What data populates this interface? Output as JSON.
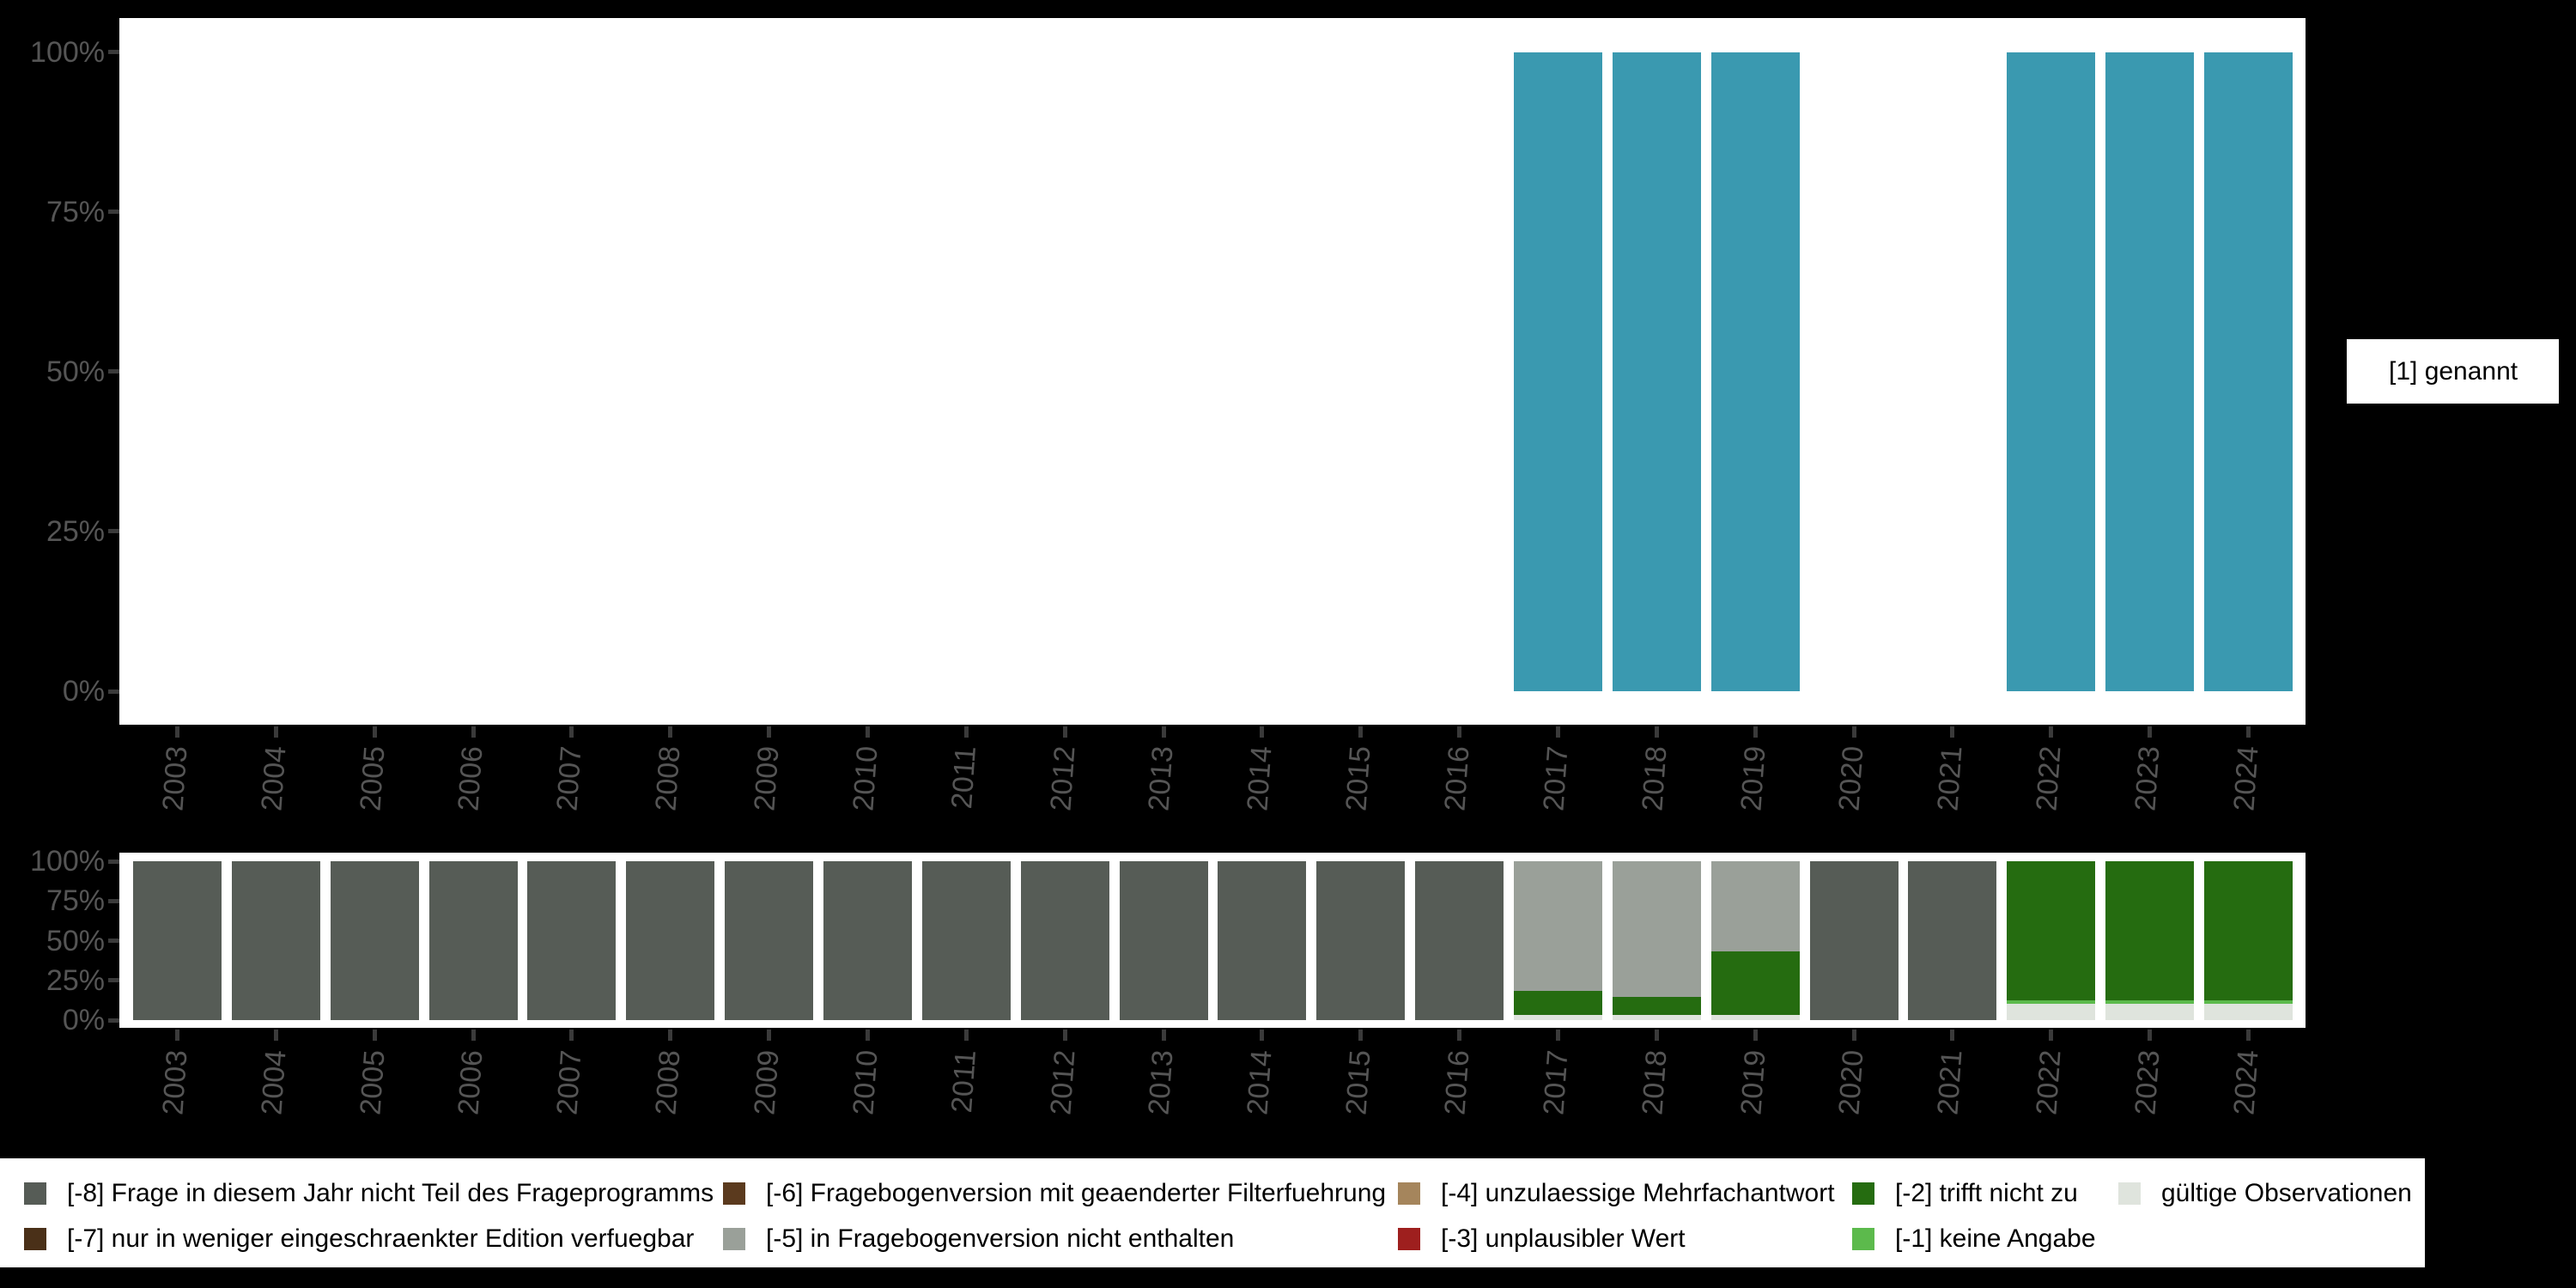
{
  "colors": {
    "background": "#000000",
    "panel": "#ffffff",
    "axis_text": "#555555",
    "tick": "#3a3a3a",
    "legend_background": "#ffffff",
    "legend_text": "#000000"
  },
  "top_legend": {
    "items": [
      {
        "label": "[1] genannt",
        "color": "#3A99B0"
      }
    ]
  },
  "bottom_legend": {
    "columns": [
      [
        {
          "label": "[-8] Frage in diesem Jahr nicht Teil des Frageprogramms",
          "color": "#565C56"
        },
        {
          "label": "[-7] nur in weniger eingeschraenkter Edition verfuegbar",
          "color": "#4A3018"
        }
      ],
      [
        {
          "label": "[-6] Fragebogenversion mit geaenderter Filterfuehrung",
          "color": "#5B3A1E"
        },
        {
          "label": "[-5] in Fragebogenversion nicht enthalten",
          "color": "#9AA099"
        }
      ],
      [
        {
          "label": "[-4] unzulaessige Mehrfachantwort",
          "color": "#A5855C"
        },
        {
          "label": "[-3] unplausibler Wert",
          "color": "#9E1F1E"
        }
      ],
      [
        {
          "label": "[-2] trifft nicht zu",
          "color": "#256C10"
        },
        {
          "label": "[-1] keine Angabe",
          "color": "#5CBA4C"
        }
      ],
      [
        {
          "label": "gültige Observationen",
          "color": "#DFE4DD"
        }
      ]
    ]
  },
  "chart_data": [
    {
      "type": "bar",
      "stacked": true,
      "title": "",
      "xlabel": "",
      "ylabel": "",
      "ylim": [
        0,
        100
      ],
      "grid": false,
      "legend_position": "right",
      "categories": [
        "2003",
        "2004",
        "2005",
        "2006",
        "2007",
        "2008",
        "2009",
        "2010",
        "2011",
        "2012",
        "2013",
        "2014",
        "2015",
        "2016",
        "2017",
        "2018",
        "2019",
        "2020",
        "2021",
        "2022",
        "2023",
        "2024"
      ],
      "y_tick_values": [
        0,
        25,
        50,
        75,
        100
      ],
      "y_tick_labels": [
        "0%",
        "25%",
        "50%",
        "75%",
        "100%"
      ],
      "series": [
        {
          "name": "[1] genannt",
          "color": "#3A99B0",
          "values": [
            0,
            0,
            0,
            0,
            0,
            0,
            0,
            0,
            0,
            0,
            0,
            0,
            0,
            0,
            100,
            100,
            100,
            0,
            0,
            100,
            100,
            100
          ]
        }
      ]
    },
    {
      "type": "bar",
      "stacked": true,
      "title": "",
      "xlabel": "",
      "ylabel": "",
      "ylim": [
        0,
        100
      ],
      "grid": false,
      "legend_position": "bottom",
      "categories": [
        "2003",
        "2004",
        "2005",
        "2006",
        "2007",
        "2008",
        "2009",
        "2010",
        "2011",
        "2012",
        "2013",
        "2014",
        "2015",
        "2016",
        "2017",
        "2018",
        "2019",
        "2020",
        "2021",
        "2022",
        "2023",
        "2024"
      ],
      "y_tick_values": [
        0,
        25,
        50,
        75,
        100
      ],
      "y_tick_labels": [
        "0%",
        "25%",
        "50%",
        "75%",
        "100%"
      ],
      "series": [
        {
          "name": "gültige Observationen",
          "color": "#DFE4DD",
          "values": [
            0,
            0,
            0,
            0,
            0,
            0,
            0,
            0,
            0,
            0,
            0,
            0,
            0,
            0,
            3.5,
            3.5,
            3,
            0,
            0,
            10.5,
            10.5,
            10.5
          ]
        },
        {
          "name": "[-1] keine Angabe",
          "color": "#5CBA4C",
          "values": [
            0,
            0,
            0,
            0,
            0,
            0,
            0,
            0,
            0,
            0,
            0,
            0,
            0,
            0,
            0,
            0,
            0,
            0,
            0,
            2,
            2,
            2
          ]
        },
        {
          "name": "[-2] trifft nicht zu",
          "color": "#256C10",
          "values": [
            0,
            0,
            0,
            0,
            0,
            0,
            0,
            0,
            0,
            0,
            0,
            0,
            0,
            0,
            15,
            11,
            40,
            0,
            0,
            87.5,
            87.5,
            87.5
          ]
        },
        {
          "name": "[-5] in Fragebogenversion nicht enthalten",
          "color": "#9AA099",
          "values": [
            0,
            0,
            0,
            0,
            0,
            0,
            0,
            0,
            0,
            0,
            0,
            0,
            0,
            0,
            81.5,
            85.5,
            57,
            0,
            0,
            0,
            0,
            0
          ]
        },
        {
          "name": "[-8] Frage in diesem Jahr nicht Teil des Frageprogramms",
          "color": "#565C56",
          "values": [
            100,
            100,
            100,
            100,
            100,
            100,
            100,
            100,
            100,
            100,
            100,
            100,
            100,
            100,
            0,
            0,
            0,
            100,
            100,
            0,
            0,
            0
          ]
        }
      ]
    }
  ]
}
